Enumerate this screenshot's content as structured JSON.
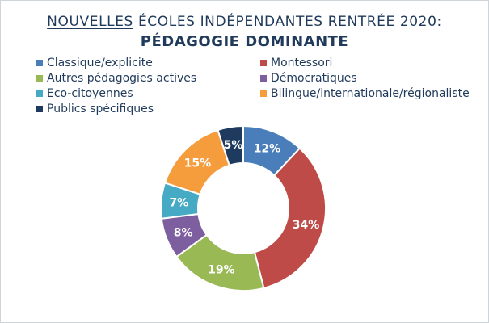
{
  "chart_data": {
    "type": "pie",
    "title_underlined": "NOUVELLES",
    "title_rest": "ÉCOLES INDÉPENDANTES RENTRÉE 2020:",
    "subtitle": "PÉDAGOGIE DOMINANTE",
    "unit": "%",
    "donut": true,
    "legend_position": "top",
    "slices": [
      {
        "label": "Classique/explicite",
        "value": 12,
        "display": "12%",
        "color": "#4a7ebb"
      },
      {
        "label": "Montessori",
        "value": 34,
        "display": "34%",
        "color": "#be4b48"
      },
      {
        "label": "Autres pédagogies actives",
        "value": 19,
        "display": "19%",
        "color": "#98b954"
      },
      {
        "label": "Démocratiques",
        "value": 8,
        "display": "8%",
        "color": "#7d5fa0"
      },
      {
        "label": "Eco-citoyennes",
        "value": 7,
        "display": "7%",
        "color": "#46aac5"
      },
      {
        "label": "Bilingue/internationale/régionaliste",
        "value": 15,
        "display": "15%",
        "color": "#f59d3d"
      },
      {
        "label": "Publics spécifiques",
        "value": 5,
        "display": "5%",
        "color": "#1f3a5f"
      }
    ]
  }
}
